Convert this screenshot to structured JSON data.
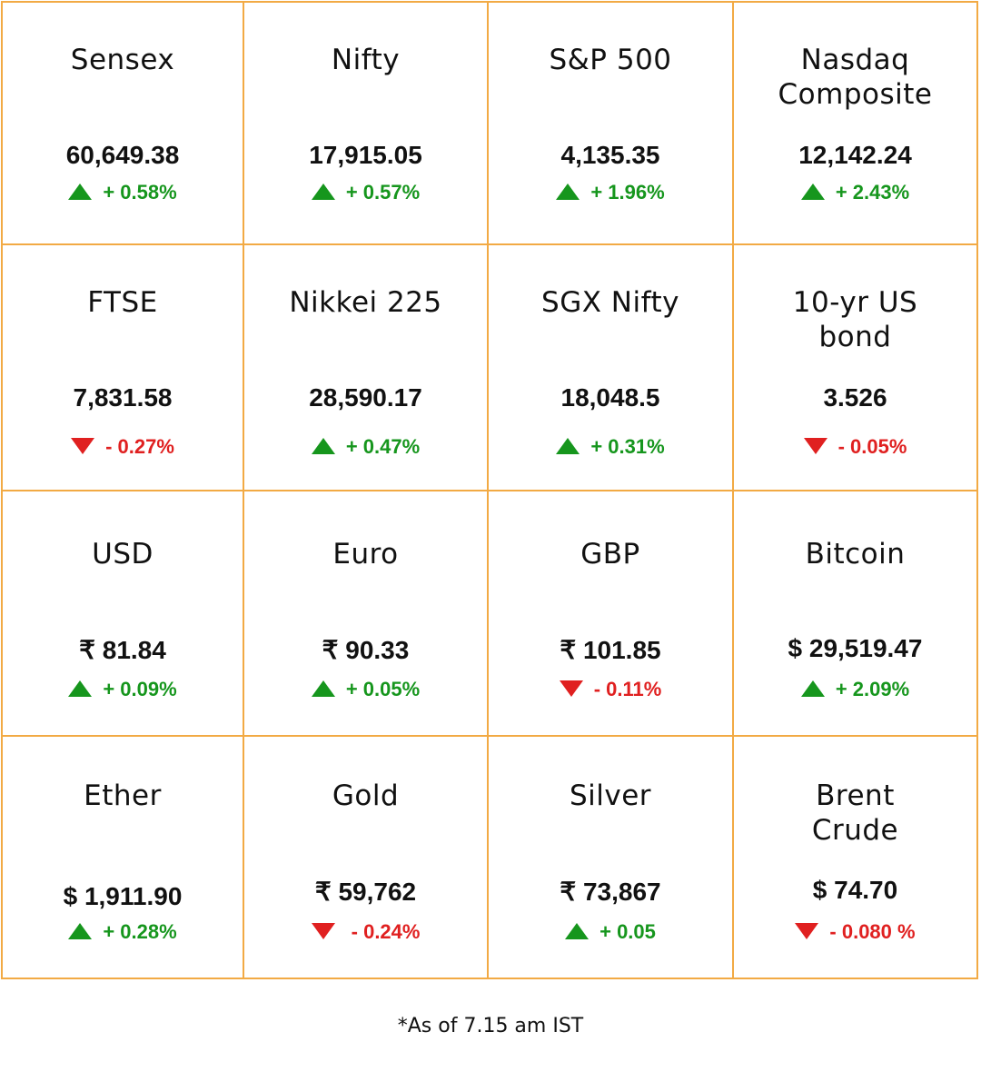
{
  "colors": {
    "border": "#f2aa44",
    "up": "#16961d",
    "down": "#e02020"
  },
  "tiles": [
    {
      "name": "Sensex",
      "value": "60,649.38",
      "change": "+ 0.58%",
      "direction": "up"
    },
    {
      "name": "Nifty",
      "value": "17,915.05",
      "change": "+ 0.57%",
      "direction": "up"
    },
    {
      "name": "S&P 500",
      "value": "4,135.35",
      "change": "+ 1.96%",
      "direction": "up"
    },
    {
      "name": "Nasdaq\nComposite",
      "value": "12,142.24",
      "change": "+ 2.43%",
      "direction": "up"
    },
    {
      "name": "FTSE",
      "value": "7,831.58",
      "change": "- 0.27%",
      "direction": "down"
    },
    {
      "name": "Nikkei 225",
      "value": "28,590.17",
      "change": "+ 0.47%",
      "direction": "up"
    },
    {
      "name": "SGX Nifty",
      "value": "18,048.5",
      "change": "+ 0.31%",
      "direction": "up"
    },
    {
      "name": "10-yr US\nbond",
      "value": "3.526",
      "change": "- 0.05%",
      "direction": "down"
    },
    {
      "name": "USD",
      "value": "₹ 81.84",
      "change": "+ 0.09%",
      "direction": "up"
    },
    {
      "name": "Euro",
      "value": "₹ 90.33",
      "change": "+ 0.05%",
      "direction": "up"
    },
    {
      "name": "GBP",
      "value": "₹ 101.85",
      "change": "- 0.11%",
      "direction": "down"
    },
    {
      "name": "Bitcoin",
      "value": "$ 29,519.47",
      "change": "+ 2.09%",
      "direction": "up"
    },
    {
      "name": "Ether",
      "value": "$ 1,911.90",
      "change": "+ 0.28%",
      "direction": "up"
    },
    {
      "name": "Gold",
      "value": "₹ 59,762",
      "change": " - 0.24%",
      "direction": "down"
    },
    {
      "name": "Silver",
      "value": "₹ 73,867",
      "change": "+ 0.05",
      "direction": "up"
    },
    {
      "name": "Brent\nCrude",
      "value": "$ 74.70",
      "change": "- 0.080 %",
      "direction": "down"
    }
  ],
  "footnote": "*As of 7.15 am IST"
}
